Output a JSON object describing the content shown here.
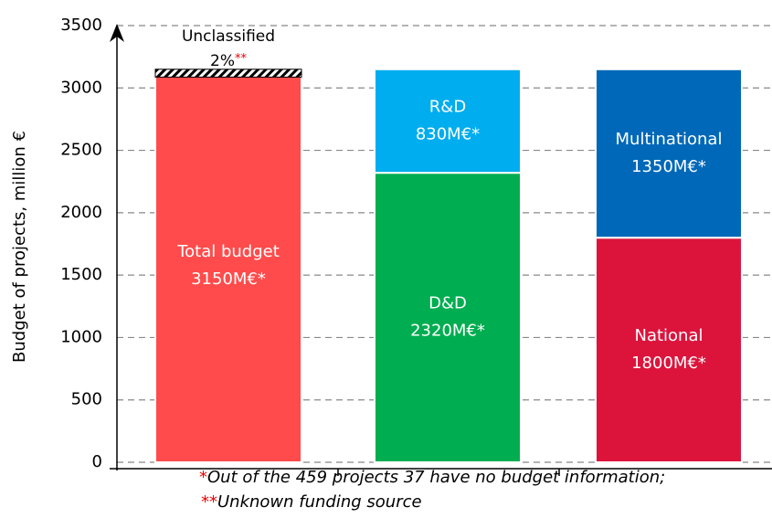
{
  "chart_data": {
    "type": "stacked_bar",
    "ylabel": "Budget of projects, million €",
    "ylim": [
      0,
      3500
    ],
    "yticks": [
      0,
      500,
      1000,
      1500,
      2000,
      2500,
      3000,
      3500
    ],
    "grid": true,
    "bars": [
      {
        "segments": [
          {
            "name": "Total budget",
            "value": 3150,
            "value_label": "3150M€*",
            "color": "#ff4b4b"
          }
        ],
        "overlay": {
          "name": "Unclassified",
          "value": 2,
          "value_label": "2%",
          "mark": "**",
          "color": "#000000"
        }
      },
      {
        "segments": [
          {
            "name": "D&D",
            "value": 2320,
            "value_label": "2320M€*",
            "color": "#00ad50"
          },
          {
            "name": "R&D",
            "value": 830,
            "value_label": "830M€*",
            "color": "#00adee"
          }
        ]
      },
      {
        "segments": [
          {
            "name": "National",
            "value": 1800,
            "value_label": "1800M€*",
            "color": "#dc143c"
          },
          {
            "name": "Multinational",
            "value": 1350,
            "value_label": "1350M€*",
            "color": "#0068b8"
          }
        ]
      }
    ],
    "notes": [
      {
        "mark": "*",
        "text": "Out of the 459 projects 37 have no budget information;"
      },
      {
        "mark": "**",
        "text": "Unknown funding source"
      }
    ]
  }
}
